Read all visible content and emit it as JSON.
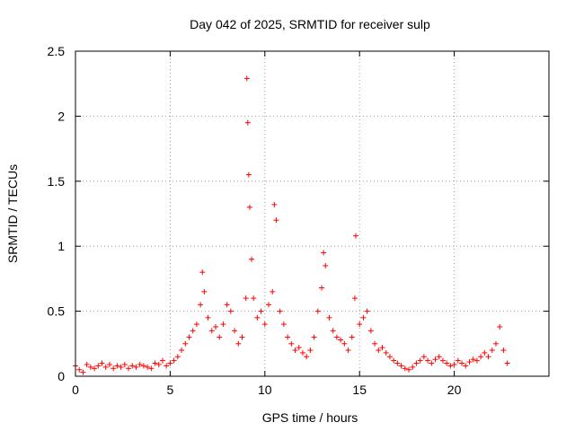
{
  "chart_data": {
    "type": "scatter",
    "title": "Day 042 of 2025, SRMTID for receiver sulp",
    "xlabel": "GPS time / hours",
    "ylabel": "SRMTID / TECUs",
    "xlim": [
      0,
      25
    ],
    "ylim": [
      0,
      2.5
    ],
    "xticks": [
      0,
      5,
      10,
      15,
      20
    ],
    "xtick_labels": [
      "0",
      "5",
      "10",
      "15",
      "20"
    ],
    "yticks": [
      0,
      0.5,
      1,
      1.5,
      2,
      2.5
    ],
    "ytick_labels": [
      "0",
      "0.5",
      "1",
      "1.5",
      "2",
      "2.5"
    ],
    "grid": true,
    "marker": "+",
    "series": [
      {
        "name": "SRMTID",
        "color": "#ff0000",
        "x": [
          0.0,
          0.2,
          0.4,
          0.6,
          0.8,
          1.0,
          1.2,
          1.4,
          1.6,
          1.8,
          2.0,
          2.2,
          2.4,
          2.6,
          2.8,
          3.0,
          3.2,
          3.4,
          3.6,
          3.8,
          4.0,
          4.2,
          4.4,
          4.6,
          4.8,
          5.0,
          5.2,
          5.4,
          5.6,
          5.8,
          6.0,
          6.2,
          6.4,
          6.6,
          6.7,
          6.8,
          7.0,
          7.2,
          7.4,
          7.6,
          7.8,
          8.0,
          8.2,
          8.4,
          8.6,
          8.8,
          9.0,
          9.05,
          9.1,
          9.15,
          9.2,
          9.3,
          9.4,
          9.6,
          9.8,
          10.0,
          10.2,
          10.4,
          10.5,
          10.6,
          10.8,
          11.0,
          11.2,
          11.4,
          11.6,
          11.8,
          12.0,
          12.2,
          12.4,
          12.6,
          12.8,
          13.0,
          13.1,
          13.2,
          13.4,
          13.6,
          13.8,
          14.0,
          14.2,
          14.4,
          14.6,
          14.75,
          14.8,
          15.0,
          15.2,
          15.4,
          15.6,
          15.8,
          16.0,
          16.2,
          16.4,
          16.6,
          16.8,
          17.0,
          17.2,
          17.4,
          17.6,
          17.8,
          18.0,
          18.2,
          18.4,
          18.6,
          18.8,
          19.0,
          19.2,
          19.4,
          19.6,
          19.8,
          20.0,
          20.2,
          20.4,
          20.6,
          20.8,
          21.0,
          21.2,
          21.4,
          21.6,
          21.8,
          22.0,
          22.2,
          22.4,
          22.6,
          22.8
        ],
        "y": [
          0.08,
          0.05,
          0.03,
          0.09,
          0.07,
          0.06,
          0.08,
          0.1,
          0.07,
          0.09,
          0.06,
          0.08,
          0.07,
          0.09,
          0.06,
          0.08,
          0.07,
          0.09,
          0.08,
          0.07,
          0.06,
          0.1,
          0.09,
          0.12,
          0.08,
          0.1,
          0.12,
          0.15,
          0.2,
          0.25,
          0.3,
          0.35,
          0.4,
          0.55,
          0.8,
          0.65,
          0.45,
          0.35,
          0.38,
          0.3,
          0.4,
          0.55,
          0.5,
          0.35,
          0.25,
          0.3,
          0.6,
          2.29,
          1.95,
          1.55,
          1.3,
          0.9,
          0.6,
          0.45,
          0.5,
          0.4,
          0.55,
          0.65,
          1.32,
          1.2,
          0.5,
          0.4,
          0.3,
          0.25,
          0.2,
          0.22,
          0.18,
          0.15,
          0.2,
          0.3,
          0.5,
          0.68,
          0.95,
          0.85,
          0.45,
          0.35,
          0.3,
          0.28,
          0.25,
          0.2,
          0.3,
          0.6,
          1.08,
          0.4,
          0.45,
          0.5,
          0.35,
          0.25,
          0.2,
          0.22,
          0.18,
          0.15,
          0.12,
          0.1,
          0.08,
          0.06,
          0.05,
          0.07,
          0.1,
          0.12,
          0.15,
          0.12,
          0.1,
          0.13,
          0.15,
          0.12,
          0.1,
          0.08,
          0.09,
          0.12,
          0.1,
          0.08,
          0.11,
          0.13,
          0.12,
          0.15,
          0.18,
          0.15,
          0.2,
          0.25,
          0.38,
          0.2,
          0.1
        ]
      }
    ]
  }
}
